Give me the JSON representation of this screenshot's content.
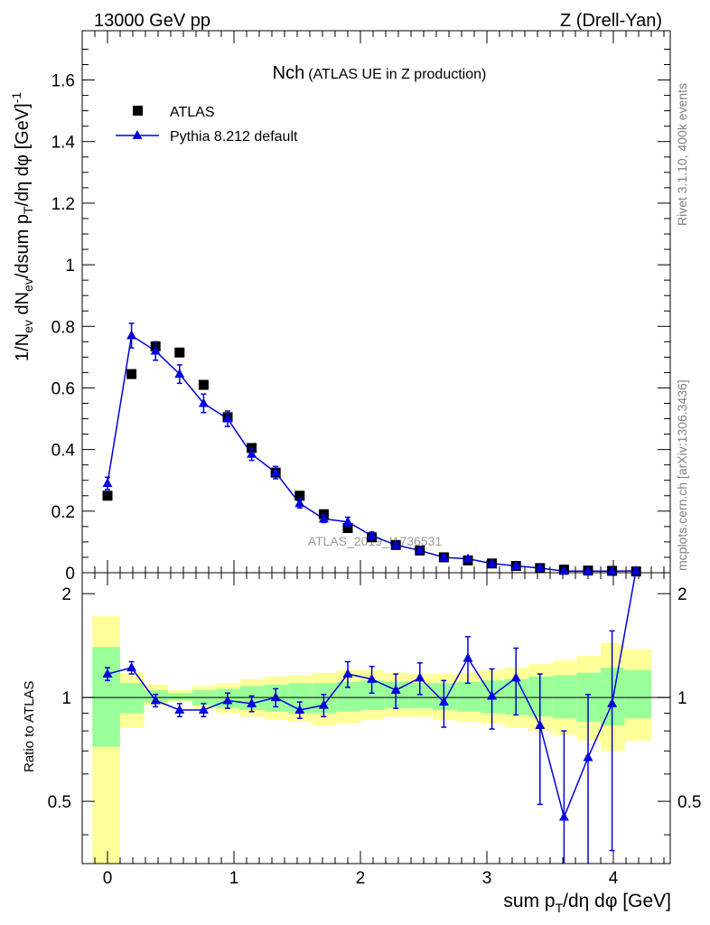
{
  "header": {
    "energy_label": "13000 GeV pp",
    "process_label": "Z (Drell-Yan)"
  },
  "side_labels": {
    "rivet": "Rivet 3.1.10,  400k events",
    "source": "mcplots.cern.ch [arXiv:1306.3436]"
  },
  "watermark": "ATLAS_2019_I1736531",
  "colors": {
    "atlas": "#000000",
    "pythia": "#0000dd",
    "band_yellow": "#ffff99",
    "band_green": "#99ff99",
    "reference_line": "#000000"
  },
  "chart_data": [
    {
      "type": "scatter",
      "panel": "main",
      "title": "Nch",
      "subtitle": "(ATLAS UE in Z production)",
      "ylabel": "1/Nev dNev/dsum pT/dη dφ [GeV]^-1",
      "xlim": [
        -0.2,
        4.45
      ],
      "ylim": [
        0,
        1.76
      ],
      "yticks": [
        0,
        0.2,
        0.4,
        0.6,
        0.8,
        1,
        1.2,
        1.4,
        1.6
      ],
      "ytick_labels": [
        "0",
        "0.2",
        "0.4",
        "0.6",
        "0.8",
        "1",
        "1.2",
        "1.4",
        "1.6"
      ],
      "legend": {
        "position": "top-left",
        "entries": [
          "ATLAS",
          "Pythia 8.212 default"
        ]
      },
      "x": [
        0.0,
        0.19,
        0.38,
        0.57,
        0.76,
        0.95,
        1.14,
        1.33,
        1.52,
        1.71,
        1.9,
        2.09,
        2.28,
        2.47,
        2.66,
        2.85,
        3.04,
        3.23,
        3.42,
        3.61,
        3.8,
        3.99,
        4.18
      ],
      "series": [
        {
          "name": "ATLAS",
          "marker": "square",
          "values": [
            0.25,
            0.645,
            0.735,
            0.715,
            0.61,
            0.505,
            0.405,
            0.325,
            0.25,
            0.19,
            0.145,
            0.115,
            0.09,
            0.072,
            0.05,
            0.04,
            0.03,
            0.022,
            0.015,
            0.01,
            0.007,
            0.006,
            0.004
          ]
        },
        {
          "name": "Pythia 8.212 default",
          "marker": "triangle",
          "values": [
            0.29,
            0.77,
            0.72,
            0.645,
            0.55,
            0.5,
            0.385,
            0.325,
            0.225,
            0.175,
            0.165,
            0.12,
            0.09,
            0.072,
            0.05,
            0.045,
            0.03,
            0.022,
            0.015,
            0.005,
            0.005,
            0.005,
            0.006
          ],
          "errors": [
            0.02,
            0.04,
            0.03,
            0.03,
            0.03,
            0.025,
            0.02,
            0.02,
            0.015,
            0.012,
            0.015,
            0.012,
            0.01,
            0.008,
            0.007,
            0.007,
            0.006,
            0.005,
            0.005,
            0.004,
            0.004,
            0.004,
            0.005
          ]
        }
      ]
    },
    {
      "type": "line",
      "panel": "ratio",
      "ylabel": "Ratio to ATLAS",
      "xlabel": "sum pT/dη dφ [GeV]",
      "xlim": [
        -0.2,
        4.45
      ],
      "ylim": [
        0.33,
        2.3
      ],
      "yticks": [
        0.5,
        1,
        2
      ],
      "ytick_labels": [
        "0.5",
        "1",
        "2"
      ],
      "xticks": [
        0,
        1,
        2,
        3,
        4
      ],
      "xtick_labels": [
        "0",
        "1",
        "2",
        "3",
        "4"
      ],
      "reference": 1.0,
      "band_edges": [
        -0.12,
        0.1,
        0.29,
        0.48,
        0.67,
        0.86,
        1.05,
        1.24,
        1.43,
        1.62,
        1.81,
        2.0,
        2.19,
        2.38,
        2.57,
        2.76,
        2.95,
        3.14,
        3.33,
        3.52,
        3.71,
        3.9,
        4.09,
        4.3
      ],
      "yellow_band": {
        "low": [
          0.33,
          0.82,
          0.95,
          0.97,
          0.93,
          0.9,
          0.88,
          0.86,
          0.85,
          0.83,
          0.84,
          0.86,
          0.88,
          0.88,
          0.86,
          0.85,
          0.84,
          0.82,
          0.8,
          0.78,
          0.75,
          0.7,
          0.75
        ],
        "high": [
          1.72,
          1.18,
          1.09,
          1.05,
          1.08,
          1.1,
          1.13,
          1.15,
          1.16,
          1.18,
          1.2,
          1.2,
          1.18,
          1.17,
          1.17,
          1.18,
          1.2,
          1.22,
          1.25,
          1.28,
          1.32,
          1.44,
          1.38
        ]
      },
      "green_band": {
        "low": [
          0.72,
          0.9,
          0.97,
          0.98,
          0.95,
          0.93,
          0.92,
          0.91,
          0.9,
          0.9,
          0.91,
          0.92,
          0.93,
          0.93,
          0.92,
          0.91,
          0.9,
          0.89,
          0.88,
          0.87,
          0.85,
          0.83,
          0.87
        ],
        "high": [
          1.4,
          1.1,
          1.05,
          1.03,
          1.05,
          1.06,
          1.08,
          1.09,
          1.1,
          1.1,
          1.11,
          1.12,
          1.11,
          1.1,
          1.1,
          1.11,
          1.12,
          1.13,
          1.15,
          1.16,
          1.18,
          1.22,
          1.2
        ]
      },
      "series": [
        {
          "name": "Pythia 8.212 default",
          "x": [
            0.0,
            0.19,
            0.38,
            0.57,
            0.76,
            0.95,
            1.14,
            1.33,
            1.52,
            1.71,
            1.9,
            2.09,
            2.28,
            2.47,
            2.66,
            2.85,
            3.04,
            3.23,
            3.42,
            3.61,
            3.8,
            3.99,
            4.18
          ],
          "values": [
            1.17,
            1.22,
            0.98,
            0.92,
            0.92,
            0.98,
            0.96,
            1.0,
            0.92,
            0.95,
            1.17,
            1.13,
            1.05,
            1.14,
            0.97,
            1.3,
            1.01,
            1.14,
            0.83,
            0.45,
            0.67,
            0.96,
            2.35
          ],
          "err_low": [
            0.05,
            0.05,
            0.04,
            0.04,
            0.04,
            0.05,
            0.05,
            0.06,
            0.05,
            0.07,
            0.1,
            0.1,
            0.12,
            0.12,
            0.15,
            0.2,
            0.2,
            0.25,
            0.34,
            0.2,
            0.35,
            0.6,
            0.0
          ],
          "err_high": [
            0.05,
            0.05,
            0.04,
            0.04,
            0.04,
            0.05,
            0.05,
            0.06,
            0.05,
            0.07,
            0.1,
            0.1,
            0.12,
            0.12,
            0.15,
            0.2,
            0.2,
            0.25,
            0.34,
            0.35,
            0.35,
            0.6,
            0.0
          ]
        }
      ]
    }
  ]
}
